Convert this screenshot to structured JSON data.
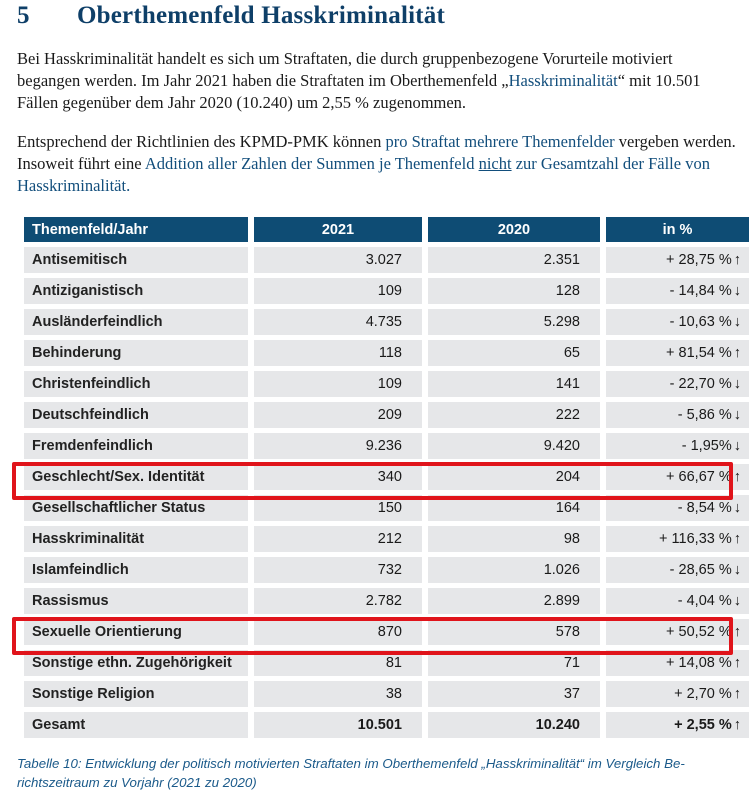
{
  "section": {
    "number": "5",
    "title": "Oberthemenfeld Hasskriminalität"
  },
  "para1": {
    "a": "Bei Hasskriminalität handelt es sich um Straftaten, die durch gruppenbezogene Vorurteile motiviert begangen werden. Im Jahr 2021 haben die Straftaten im Oberthemenfeld „",
    "b": "Hasskriminalität",
    "c": "“ mit 10.501 Fällen gegenüber dem Jahr 2020 (10.240) um 2,55 % zugenommen."
  },
  "para2": {
    "a": "Entsprechend der Richtlinien des KPMD-PMK können ",
    "b": "pro Straftat mehrere Themenfelder",
    "c": " verge­ben werden. Insoweit führt eine ",
    "d": "Addition aller Zahlen der Summen je Themenfeld ",
    "e": "nicht",
    "f": " zur Ge­samtzahl der Fälle von Hasskriminalität."
  },
  "table": {
    "headers": [
      "Themenfeld/Jahr",
      "2021",
      "2020",
      "in %"
    ],
    "rows": [
      {
        "label": "Antisemitisch",
        "y2021": "3.027",
        "y2020": "2.351",
        "pct": "+ 28,75 %",
        "dir": "up"
      },
      {
        "label": "Antiziganistisch",
        "y2021": "109",
        "y2020": "128",
        "pct": "- 14,84 %",
        "dir": "down"
      },
      {
        "label": "Ausländerfeindlich",
        "y2021": "4.735",
        "y2020": "5.298",
        "pct": "- 10,63 %",
        "dir": "down"
      },
      {
        "label": "Behinderung",
        "y2021": "118",
        "y2020": "65",
        "pct": "+ 81,54 %",
        "dir": "up"
      },
      {
        "label": "Christenfeindlich",
        "y2021": "109",
        "y2020": "141",
        "pct": "- 22,70 %",
        "dir": "down"
      },
      {
        "label": "Deutschfeindlich",
        "y2021": "209",
        "y2020": "222",
        "pct": "- 5,86 %",
        "dir": "down"
      },
      {
        "label": "Fremdenfeindlich",
        "y2021": "9.236",
        "y2020": "9.420",
        "pct": "- 1,95%",
        "dir": "down"
      },
      {
        "label": "Geschlecht/Sex. Identität",
        "y2021": "340",
        "y2020": "204",
        "pct": "+ 66,67 %",
        "dir": "up",
        "highlighted": true
      },
      {
        "label": "Gesellschaftlicher Status",
        "y2021": "150",
        "y2020": "164",
        "pct": "- 8,54 %",
        "dir": "down"
      },
      {
        "label": "Hasskriminalität",
        "y2021": "212",
        "y2020": "98",
        "pct": "+ 116,33 %",
        "dir": "up"
      },
      {
        "label": "Islamfeindlich",
        "y2021": "732",
        "y2020": "1.026",
        "pct": "- 28,65 %",
        "dir": "down"
      },
      {
        "label": "Rassismus",
        "y2021": "2.782",
        "y2020": "2.899",
        "pct": "- 4,04 %",
        "dir": "down"
      },
      {
        "label": "Sexuelle Orientierung",
        "y2021": "870",
        "y2020": "578",
        "pct": "+ 50,52 %",
        "dir": "up",
        "highlighted": true
      },
      {
        "label": "Sonstige ethn. Zugehörigkeit",
        "y2021": "81",
        "y2020": "71",
        "pct": "+ 14,08 %",
        "dir": "up"
      },
      {
        "label": "Sonstige Religion",
        "y2021": "38",
        "y2020": "37",
        "pct": "+ 2,70 %",
        "dir": "up"
      },
      {
        "label": "Gesamt",
        "y2021": "10.501",
        "y2020": "10.240",
        "pct": "+ 2,55 %",
        "dir": "up",
        "total": true
      }
    ],
    "highlight_color": "#e0141b"
  },
  "caption": "Tabelle 10: Entwicklung der politisch motivierten Straftaten im Oberthemenfeld „Hasskriminalität“ im Vergleich Be­richtszeitraum zu Vorjahr (2021 zu 2020)"
}
